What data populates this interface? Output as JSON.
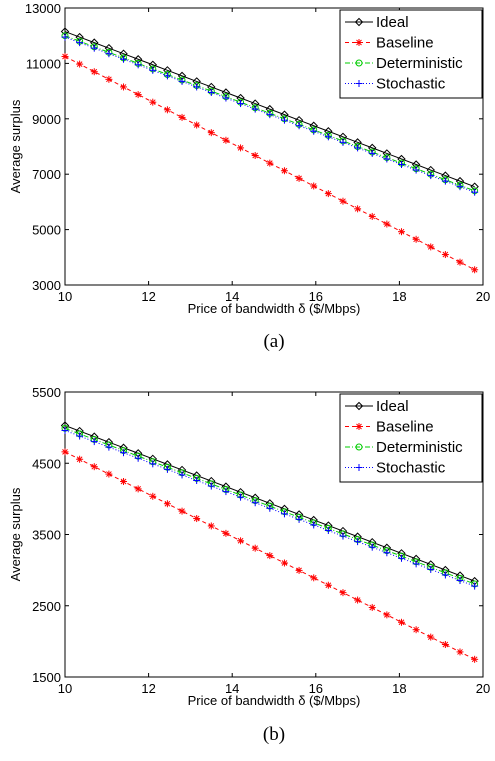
{
  "chart_data": [
    {
      "type": "line",
      "caption": "(a)",
      "xlabel": "Price of bandwidth δ ($/Mbps)",
      "ylabel": "Average surplus",
      "x": [
        10,
        10.35,
        10.7,
        11.05,
        11.4,
        11.75,
        12.1,
        12.45,
        12.8,
        13.15,
        13.5,
        13.85,
        14.2,
        14.55,
        14.9,
        15.25,
        15.6,
        15.95,
        16.3,
        16.65,
        17,
        17.35,
        17.7,
        18.05,
        18.4,
        18.75,
        19.1,
        19.45,
        19.8
      ],
      "xlim": [
        10,
        20
      ],
      "xticks": [
        10,
        12,
        14,
        16,
        18,
        20
      ],
      "ylim": [
        3000,
        13000
      ],
      "yticks": [
        3000,
        5000,
        7000,
        9000,
        11000,
        13000
      ],
      "legend": "upper right",
      "series": [
        {
          "name": "Ideal",
          "color": "#000000",
          "marker": "diamond",
          "dash": "solid",
          "values": [
            12150,
            11950,
            11750,
            11550,
            11350,
            11150,
            10950,
            10750,
            10550,
            10350,
            10150,
            9950,
            9750,
            9550,
            9350,
            9150,
            8950,
            8750,
            8550,
            8350,
            8150,
            7950,
            7750,
            7550,
            7350,
            7150,
            6950,
            6750,
            6550
          ]
        },
        {
          "name": "Baseline",
          "color": "#ff0000",
          "marker": "asterisk",
          "dash": "dashed",
          "values": [
            11250,
            10975,
            10700,
            10425,
            10150,
            9875,
            9600,
            9325,
            9050,
            8775,
            8500,
            8225,
            7950,
            7675,
            7400,
            7125,
            6850,
            6575,
            6300,
            6025,
            5750,
            5475,
            5200,
            4925,
            4650,
            4375,
            4100,
            3825,
            3550
          ]
        },
        {
          "name": "Deterministic",
          "color": "#00cc00",
          "marker": "circle",
          "dash": "dashdot",
          "values": [
            12000,
            11800,
            11600,
            11400,
            11200,
            11000,
            10800,
            10600,
            10400,
            10200,
            10000,
            9800,
            9600,
            9400,
            9200,
            9000,
            8800,
            8600,
            8400,
            8200,
            8000,
            7800,
            7600,
            7400,
            7200,
            7000,
            6800,
            6600,
            6400
          ]
        },
        {
          "name": "Stochastic",
          "color": "#0000ff",
          "marker": "plus",
          "dash": "dotted",
          "values": [
            11950,
            11750,
            11550,
            11350,
            11150,
            10950,
            10750,
            10550,
            10350,
            10150,
            9950,
            9750,
            9550,
            9350,
            9150,
            8950,
            8750,
            8550,
            8350,
            8150,
            7950,
            7750,
            7550,
            7350,
            7150,
            6950,
            6750,
            6550,
            6350
          ]
        }
      ]
    },
    {
      "type": "line",
      "caption": "(b)",
      "xlabel": "Price of bandwidth δ ($/Mbps)",
      "ylabel": "Average surplus",
      "x": [
        10,
        10.35,
        10.7,
        11.05,
        11.4,
        11.75,
        12.1,
        12.45,
        12.8,
        13.15,
        13.5,
        13.85,
        14.2,
        14.55,
        14.9,
        15.25,
        15.6,
        15.95,
        16.3,
        16.65,
        17,
        17.35,
        17.7,
        18.05,
        18.4,
        18.75,
        19.1,
        19.45,
        19.8
      ],
      "xlim": [
        10,
        20
      ],
      "xticks": [
        10,
        12,
        14,
        16,
        18,
        20
      ],
      "ylim": [
        1500,
        5500
      ],
      "yticks": [
        1500,
        2500,
        3500,
        4500,
        5500
      ],
      "legend": "upper right",
      "series": [
        {
          "name": "Ideal",
          "color": "#000000",
          "marker": "diamond",
          "dash": "solid",
          "values": [
            5030,
            4952,
            4874,
            4796,
            4718,
            4640,
            4562,
            4484,
            4406,
            4328,
            4250,
            4172,
            4094,
            4016,
            3938,
            3860,
            3782,
            3704,
            3626,
            3548,
            3470,
            3392,
            3314,
            3236,
            3158,
            3080,
            3002,
            2924,
            2846
          ]
        },
        {
          "name": "Baseline",
          "color": "#ff0000",
          "marker": "asterisk",
          "dash": "dashed",
          "values": [
            4660,
            4556,
            4452,
            4348,
            4244,
            4140,
            4036,
            3932,
            3828,
            3724,
            3620,
            3516,
            3412,
            3308,
            3204,
            3100,
            2996,
            2892,
            2788,
            2684,
            2580,
            2476,
            2372,
            2268,
            2164,
            2060,
            1956,
            1852,
            1748
          ]
        },
        {
          "name": "Deterministic",
          "color": "#00cc00",
          "marker": "circle",
          "dash": "dashdot",
          "values": [
            4990,
            4912,
            4834,
            4756,
            4678,
            4600,
            4522,
            4444,
            4366,
            4288,
            4210,
            4132,
            4054,
            3976,
            3898,
            3820,
            3742,
            3664,
            3586,
            3508,
            3430,
            3352,
            3274,
            3196,
            3118,
            3040,
            2962,
            2884,
            2806
          ]
        },
        {
          "name": "Stochastic",
          "color": "#0000ff",
          "marker": "plus",
          "dash": "dotted",
          "values": [
            4960,
            4882,
            4804,
            4726,
            4648,
            4570,
            4492,
            4414,
            4336,
            4258,
            4180,
            4102,
            4024,
            3946,
            3868,
            3790,
            3712,
            3634,
            3556,
            3478,
            3400,
            3322,
            3244,
            3166,
            3088,
            3010,
            2932,
            2854,
            2776
          ]
        }
      ]
    }
  ]
}
